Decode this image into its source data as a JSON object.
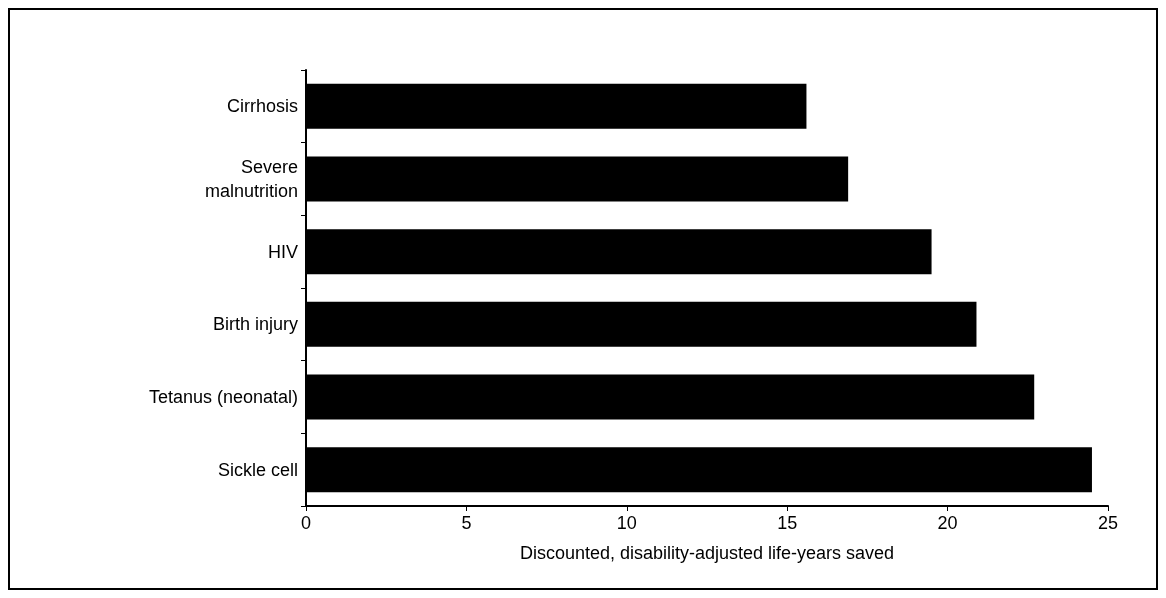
{
  "chart_data": {
    "type": "bar",
    "orientation": "horizontal",
    "xlabel": "Discounted, disability-adjusted life-years saved",
    "categories": [
      "Cirrhosis",
      "Severe\nmalnutrition",
      "HIV",
      "Birth injury",
      "Tetanus (neonatal)",
      "Sickle cell"
    ],
    "values": [
      15.6,
      16.9,
      19.5,
      20.9,
      22.7,
      24.5
    ],
    "color": "#000000",
    "xlim": [
      0,
      25
    ],
    "xticks": [
      0,
      5,
      10,
      15,
      20,
      25
    ],
    "grid": false
  }
}
